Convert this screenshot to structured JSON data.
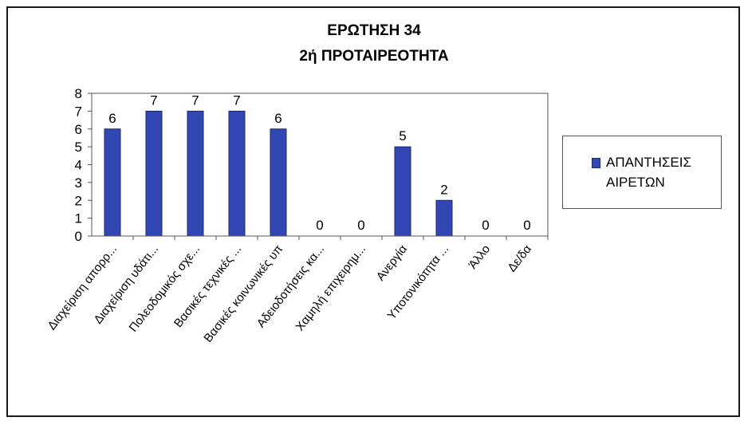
{
  "chart_data": {
    "type": "bar",
    "title": "ΕΡΩΤΗΣΗ 34",
    "subtitle": "2ή ΠΡΟΤΑΙΡΕΟΤΗΤΑ",
    "categories": [
      "Διαχείριση απορρ...",
      "Διαχείριση υδάτι...",
      "Πολεοδομικός σχε...",
      "Βασικές τεχνικές ...",
      "Βασικές κοινωνικές υπ",
      "Αδειοδοτήσεις κα...",
      "Χαμηλή επιχειρημ...",
      "Ανεργία",
      "Υποτονικότητα ...",
      "Άλλο",
      "Δε/δα"
    ],
    "series": [
      {
        "name": "ΑΠΑΝΤΗΣΕΙΣ ΑΙΡΕΤΩΝ",
        "values": [
          6,
          7,
          7,
          7,
          6,
          0,
          0,
          5,
          2,
          0,
          0
        ]
      }
    ],
    "ylim": [
      0,
      8
    ],
    "yticks": [
      "0",
      "1",
      "2",
      "3",
      "4",
      "5",
      "6",
      "7",
      "8"
    ],
    "grid": false,
    "legend_position": "right",
    "bar_color": "#3246b4",
    "bar_edge_color": "#1c2a6e"
  }
}
